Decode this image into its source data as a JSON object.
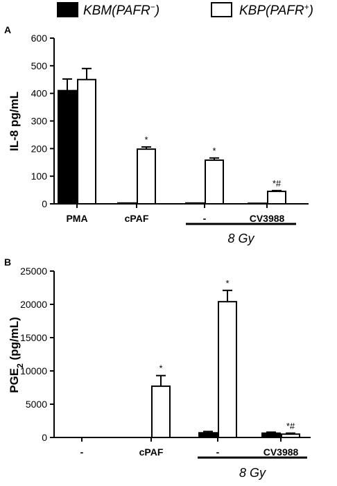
{
  "legend": {
    "series_a": {
      "text": "KBM(PAFR",
      "sup": "−",
      "close": ")"
    },
    "series_b": {
      "text": "KBP(PAFR",
      "sup": "+",
      "close": ")"
    }
  },
  "colors": {
    "series_a": "#000000",
    "series_b": "#ffffff"
  },
  "chart_data": [
    {
      "type": "bar",
      "panel": "A",
      "ylabel": "IL-8 pg/mL",
      "ylim": [
        0,
        600
      ],
      "yticks": [
        0,
        100,
        200,
        300,
        400,
        500,
        600
      ],
      "categories": [
        "PMA",
        "cPAF",
        "-",
        "CV3988"
      ],
      "series": [
        {
          "values": [
            410,
            3,
            3,
            2
          ],
          "errors": [
            42,
            0,
            0,
            0
          ]
        },
        {
          "values": [
            450,
            198,
            158,
            45
          ],
          "errors": [
            40,
            8,
            8,
            3
          ]
        }
      ],
      "significance": [
        "",
        "*",
        "*",
        "*#"
      ],
      "group_label": {
        "text": "8 Gy",
        "categories": [
          2,
          3
        ]
      }
    },
    {
      "type": "bar",
      "panel": "B",
      "ylabel": "PGE",
      "ylabel_sub": "2",
      "ylabel_rest": " (pg/mL)",
      "ylim": [
        0,
        25000
      ],
      "yticks": [
        0,
        5000,
        10000,
        15000,
        20000,
        25000
      ],
      "categories": [
        "-",
        "cPAF",
        "-",
        "CV3988"
      ],
      "series": [
        {
          "values": [
            0,
            0,
            700,
            650
          ],
          "errors": [
            0,
            0,
            200,
            150
          ]
        },
        {
          "values": [
            0,
            7700,
            20400,
            500
          ],
          "errors": [
            0,
            1600,
            1700,
            150
          ]
        }
      ],
      "significance": [
        "",
        "*",
        "*",
        "*#"
      ],
      "group_label": {
        "text": "8 Gy",
        "categories": [
          2,
          3
        ]
      }
    }
  ]
}
